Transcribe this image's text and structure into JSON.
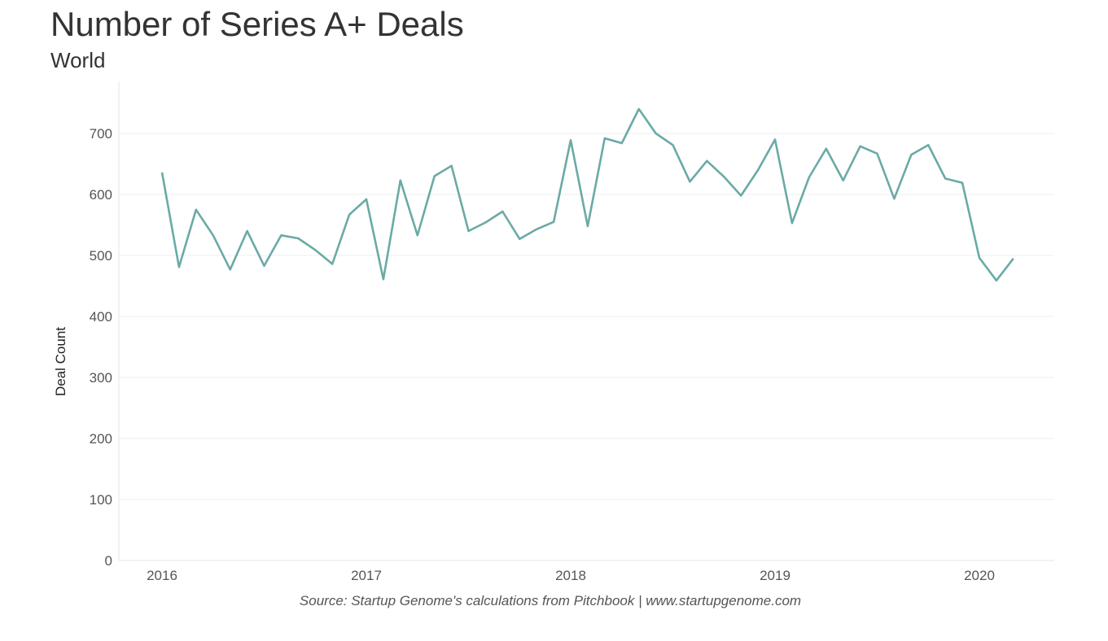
{
  "chart_data": {
    "type": "line",
    "title": "Number of Series A+ Deals",
    "subtitle": "World",
    "xlabel": "",
    "ylabel": "Deal Count",
    "source": "Source: Startup Genome's calculations from Pitchbook | www.startupgenome.com",
    "x_ticks": [
      "2016",
      "2017",
      "2018",
      "2019",
      "2020"
    ],
    "y_ticks": [
      0,
      100,
      200,
      300,
      400,
      500,
      600,
      700
    ],
    "ylim": [
      0,
      700
    ],
    "xlim": [
      "2015-11",
      "2020-04"
    ],
    "grid": true,
    "color": "#6aaaa6",
    "x": [
      "2016-01",
      "2016-02",
      "2016-03",
      "2016-04",
      "2016-05",
      "2016-06",
      "2016-07",
      "2016-08",
      "2016-09",
      "2016-10",
      "2016-11",
      "2016-12",
      "2017-01",
      "2017-02",
      "2017-03",
      "2017-04",
      "2017-05",
      "2017-06",
      "2017-07",
      "2017-08",
      "2017-09",
      "2017-10",
      "2017-11",
      "2017-12",
      "2018-01",
      "2018-02",
      "2018-03",
      "2018-04",
      "2018-05",
      "2018-06",
      "2018-07",
      "2018-08",
      "2018-09",
      "2018-10",
      "2018-11",
      "2018-12",
      "2019-01",
      "2019-02",
      "2019-03",
      "2019-04",
      "2019-05",
      "2019-06",
      "2019-07",
      "2019-08",
      "2019-09",
      "2019-10",
      "2019-11",
      "2019-12",
      "2020-01",
      "2020-02",
      "2020-03"
    ],
    "values": [
      636,
      481,
      575,
      533,
      477,
      540,
      483,
      533,
      528,
      509,
      486,
      567,
      592,
      461,
      623,
      533,
      630,
      647,
      540,
      554,
      572,
      527,
      543,
      555,
      689,
      548,
      692,
      684,
      740,
      700,
      681,
      621,
      655,
      629,
      598,
      640,
      690,
      553,
      628,
      675,
      623,
      679,
      667,
      593,
      665,
      681,
      626,
      619,
      496,
      459,
      495
    ]
  }
}
